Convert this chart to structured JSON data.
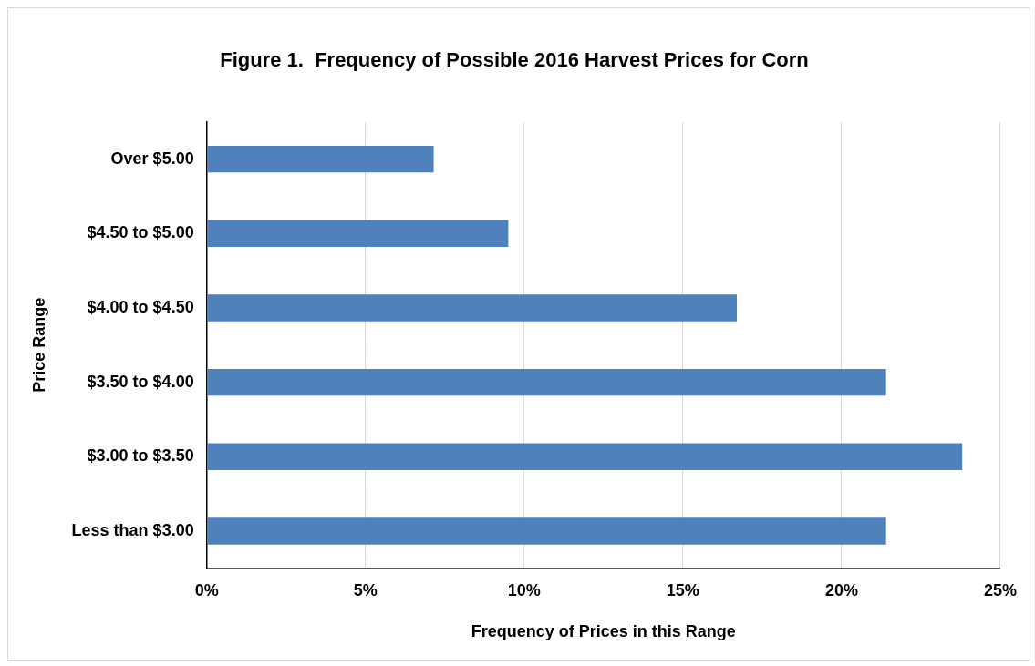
{
  "chart_data": {
    "type": "bar",
    "orientation": "horizontal",
    "title": "Figure 1.  Frequency of Possible 2016 Harvest Prices for Corn",
    "xlabel": "Frequency of Prices in this Range",
    "ylabel": "Price Range",
    "categories": [
      "Over $5.00",
      "$4.50 to $5.00",
      "$4.00 to $4.50",
      "$3.50 to $4.00",
      "$3.00 to $3.50",
      "Less than $3.00"
    ],
    "values": [
      7.15,
      9.5,
      16.7,
      21.4,
      23.8,
      21.4
    ],
    "color": "#4f81bd",
    "xlim": [
      0,
      25
    ],
    "xticks": [
      {
        "value": 0,
        "label": "0%"
      },
      {
        "value": 5,
        "label": "5%"
      },
      {
        "value": 10,
        "label": "10%"
      },
      {
        "value": 15,
        "label": "15%"
      },
      {
        "value": 20,
        "label": "20%"
      },
      {
        "value": 25,
        "label": "25%"
      }
    ],
    "grid": "x",
    "legend": false
  }
}
